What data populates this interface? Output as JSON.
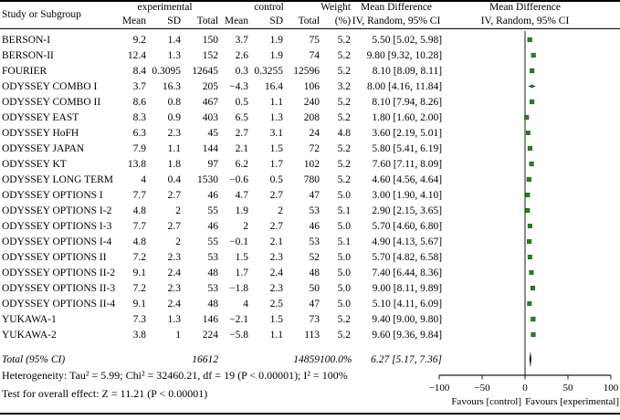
{
  "header": {
    "study": "Study or Subgroup",
    "experimental": "experimental",
    "control": "control",
    "mean": "Mean",
    "sd": "SD",
    "total": "Total",
    "weight": "Weight",
    "weight_unit": "(%)",
    "md_line1": "Mean Difference",
    "md_line2": "IV, Random, 95% CI"
  },
  "studies": [
    {
      "name": "BERSON-I",
      "e_mean": "9.2",
      "e_sd": "1.4",
      "e_total": "150",
      "c_mean": "3.7",
      "c_sd": "1.9",
      "c_total": "75",
      "weight": "5.2",
      "md_text": "5.50 [5.02, 5.98]"
    },
    {
      "name": "BERSON-II",
      "e_mean": "12.4",
      "e_sd": "1.3",
      "e_total": "152",
      "c_mean": "2.6",
      "c_sd": "1.9",
      "c_total": "74",
      "weight": "5.2",
      "md_text": "9.80 [9.32, 10.28]"
    },
    {
      "name": "FOURIER",
      "e_mean": "8.4",
      "e_sd": "0.3095",
      "e_total": "12645",
      "c_mean": "0.3",
      "c_sd": "0.3255",
      "c_total": "12596",
      "weight": "5.2",
      "md_text": "8.10 [8.09, 8.11]"
    },
    {
      "name": "ODYSSEY COMBO I",
      "e_mean": "3.7",
      "e_sd": "16.3",
      "e_total": "205",
      "c_mean": "−4.3",
      "c_sd": "16.4",
      "c_total": "106",
      "weight": "3.2",
      "md_text": "8.00 [4.16, 11.84]"
    },
    {
      "name": "ODYSSEY COMBO II",
      "e_mean": "8.6",
      "e_sd": "0.8",
      "e_total": "467",
      "c_mean": "0.5",
      "c_sd": "1.1",
      "c_total": "240",
      "weight": "5.2",
      "md_text": "8.10 [7.94, 8.26]"
    },
    {
      "name": "ODYSSEY EAST",
      "e_mean": "8.3",
      "e_sd": "0.9",
      "e_total": "403",
      "c_mean": "6.5",
      "c_sd": "1.3",
      "c_total": "208",
      "weight": "5.2",
      "md_text": "1.80 [1.60, 2.00]"
    },
    {
      "name": "ODYSSEY HoFH",
      "e_mean": "6.3",
      "e_sd": "2.3",
      "e_total": "45",
      "c_mean": "2.7",
      "c_sd": "3.1",
      "c_total": "24",
      "weight": "4.8",
      "md_text": "3.60 [2.19, 5.01]"
    },
    {
      "name": "ODYSSEY JAPAN",
      "e_mean": "7.9",
      "e_sd": "1.1",
      "e_total": "144",
      "c_mean": "2.1",
      "c_sd": "1.5",
      "c_total": "72",
      "weight": "5.2",
      "md_text": "5.80 [5.41, 6.19]"
    },
    {
      "name": "ODYSSEY KT",
      "e_mean": "13.8",
      "e_sd": "1.8",
      "e_total": "97",
      "c_mean": "6.2",
      "c_sd": "1.7",
      "c_total": "102",
      "weight": "5.2",
      "md_text": "7.60 [7.11, 8.09]"
    },
    {
      "name": "ODYSSEY LONG TERM",
      "e_mean": "4",
      "e_sd": "0.4",
      "e_total": "1530",
      "c_mean": "−0.6",
      "c_sd": "0.5",
      "c_total": "780",
      "weight": "5.2",
      "md_text": "4.60 [4.56, 4.64]"
    },
    {
      "name": "ODYSSEY OPTIONS I",
      "e_mean": "7.7",
      "e_sd": "2.7",
      "e_total": "46",
      "c_mean": "4.7",
      "c_sd": "2.7",
      "c_total": "47",
      "weight": "5.0",
      "md_text": "3.00 [1.90, 4.10]"
    },
    {
      "name": "ODYSSEY OPTIONS I-2",
      "e_mean": "4.8",
      "e_sd": "2",
      "e_total": "55",
      "c_mean": "1.9",
      "c_sd": "2",
      "c_total": "53",
      "weight": "5.1",
      "md_text": "2.90 [2.15, 3.65]"
    },
    {
      "name": "ODYSSEY OPTIONS I-3",
      "e_mean": "7.7",
      "e_sd": "2.7",
      "e_total": "46",
      "c_mean": "2",
      "c_sd": "2.7",
      "c_total": "46",
      "weight": "5.0",
      "md_text": "5.70 [4.60, 6.80]"
    },
    {
      "name": "ODYSSEY OPTIONS I-4",
      "e_mean": "4.8",
      "e_sd": "2",
      "e_total": "55",
      "c_mean": "−0.1",
      "c_sd": "2.1",
      "c_total": "53",
      "weight": "5.1",
      "md_text": "4.90 [4.13, 5.67]"
    },
    {
      "name": "ODYSSEY OPTIONS II",
      "e_mean": "7.2",
      "e_sd": "2.3",
      "e_total": "53",
      "c_mean": "1.5",
      "c_sd": "2.3",
      "c_total": "52",
      "weight": "5.0",
      "md_text": "5.70 [4.82, 6.58]"
    },
    {
      "name": "ODYSSEY OPTIONS II-2",
      "e_mean": "9.1",
      "e_sd": "2.4",
      "e_total": "48",
      "c_mean": "1.7",
      "c_sd": "2.4",
      "c_total": "48",
      "weight": "5.0",
      "md_text": "7.40 [6.44, 8.36]"
    },
    {
      "name": "ODYSSEY OPTIONS II-3",
      "e_mean": "7.2",
      "e_sd": "2.3",
      "e_total": "53",
      "c_mean": "−1.8",
      "c_sd": "2.3",
      "c_total": "50",
      "weight": "5.0",
      "md_text": "9.00 [8.11, 9.89]"
    },
    {
      "name": "ODYSSEY OPTIONS II-4",
      "e_mean": "9.1",
      "e_sd": "2.4",
      "e_total": "48",
      "c_mean": "4",
      "c_sd": "2.5",
      "c_total": "47",
      "weight": "5.0",
      "md_text": "5.10 [4.11, 6.09]"
    },
    {
      "name": "YUKAWA-1",
      "e_mean": "7.3",
      "e_sd": "1.3",
      "e_total": "146",
      "c_mean": "−2.1",
      "c_sd": "1.5",
      "c_total": "73",
      "weight": "5.2",
      "md_text": "9.40 [9.00, 9.80]"
    },
    {
      "name": "YUKAWA-2",
      "e_mean": "3.8",
      "e_sd": "1",
      "e_total": "224",
      "c_mean": "−5.8",
      "c_sd": "1.1",
      "c_total": "113",
      "weight": "5.2",
      "md_text": "9.60 [9.36, 9.84]"
    }
  ],
  "total_row": {
    "label": "Total (95% CI)",
    "e_total": "16612",
    "c_total": "14859",
    "weight": "100.0%",
    "md_text": "6.27 [5.17, 7.36]"
  },
  "footer": {
    "heterogeneity": "Heterogeneity: Tau² = 5.99; Chi² = 32460.21, df = 19 (P < 0.00001); I² = 100%",
    "overall_effect": "Test for overall effect: Z = 11.21 (P < 0.00001)"
  },
  "chart_data": {
    "type": "scatter",
    "variant": "forest-plot",
    "title": "Mean Difference",
    "subtitle": "IV, Random, 95% CI",
    "categories": [
      "BERSON-I",
      "BERSON-II",
      "FOURIER",
      "ODYSSEY COMBO I",
      "ODYSSEY COMBO II",
      "ODYSSEY EAST",
      "ODYSSEY HoFH",
      "ODYSSEY JAPAN",
      "ODYSSEY KT",
      "ODYSSEY LONG TERM",
      "ODYSSEY OPTIONS I",
      "ODYSSEY OPTIONS I-2",
      "ODYSSEY OPTIONS I-3",
      "ODYSSEY OPTIONS I-4",
      "ODYSSEY OPTIONS II",
      "ODYSSEY OPTIONS II-2",
      "ODYSSEY OPTIONS II-3",
      "ODYSSEY OPTIONS II-4",
      "YUKAWA-1",
      "YUKAWA-2"
    ],
    "means": [
      5.5,
      9.8,
      8.1,
      8.0,
      8.1,
      1.8,
      3.6,
      5.8,
      7.6,
      4.6,
      3.0,
      2.9,
      5.7,
      4.9,
      5.7,
      7.4,
      9.0,
      5.1,
      9.4,
      9.6
    ],
    "ci_low": [
      5.02,
      9.32,
      8.09,
      4.16,
      7.94,
      1.6,
      2.19,
      5.41,
      7.11,
      4.56,
      1.9,
      2.15,
      4.6,
      4.13,
      4.82,
      6.44,
      8.11,
      4.11,
      9.0,
      9.36
    ],
    "ci_high": [
      5.98,
      10.28,
      8.11,
      11.84,
      8.26,
      2.0,
      5.01,
      6.19,
      8.09,
      4.64,
      4.1,
      3.65,
      6.8,
      5.67,
      6.58,
      8.36,
      9.89,
      6.09,
      9.8,
      9.84
    ],
    "weights_pct": [
      5.2,
      5.2,
      5.2,
      3.2,
      5.2,
      5.2,
      4.8,
      5.2,
      5.2,
      5.2,
      5.0,
      5.1,
      5.0,
      5.1,
      5.0,
      5.0,
      5.0,
      5.0,
      5.2,
      5.2
    ],
    "total": {
      "label": "Total (95% CI)",
      "mean": 6.27,
      "ci_low": 5.17,
      "ci_high": 7.36
    },
    "xlim": [
      -100,
      100
    ],
    "ticks": [
      -100,
      -50,
      0,
      50,
      100
    ],
    "tick_labels": [
      "−100",
      "−50",
      "0",
      "50",
      "100"
    ],
    "favours_left": "Favours [control]",
    "favours_right": "Favours [experimental]",
    "legend_position": "none",
    "grid": false,
    "marker_color": "#2a7e2a",
    "marker_border": "#1e5c1e",
    "line_color": "#1a1a1a"
  }
}
